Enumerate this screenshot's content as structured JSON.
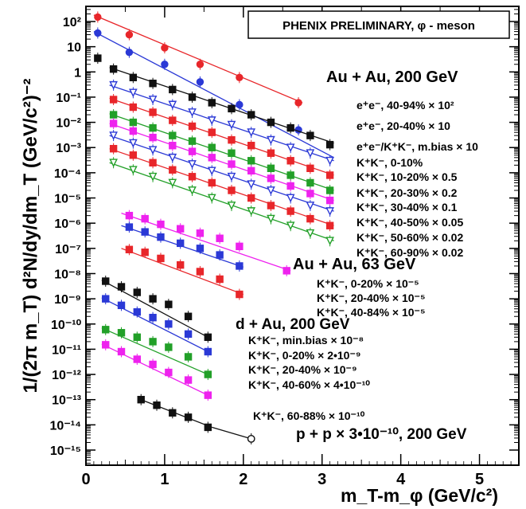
{
  "chart_data": {
    "type": "scatter",
    "title": "PHENIX PRELIMINARY, φ - meson",
    "xlabel": "m_T-m_φ (GeV/c²)",
    "ylabel": "1/(2π m_T) d²N/dy/dm_T (GeV/c²)⁻²",
    "xlim": [
      0,
      5.5
    ],
    "ylim_log10": [
      -15.6,
      2.6
    ],
    "log_y": true,
    "x_ticks": [
      "0",
      "1",
      "2",
      "3",
      "4",
      "5"
    ],
    "y_ticks": [
      "10²",
      "10",
      "1",
      "10⁻¹",
      "10⁻²",
      "10⁻³",
      "10⁻⁴",
      "10⁻⁵",
      "10⁻⁶",
      "10⁻⁷",
      "10⁻⁸",
      "10⁻⁹",
      "10⁻¹⁰",
      "10⁻¹¹",
      "10⁻¹²",
      "10⁻¹³",
      "10⁻¹⁴",
      "10⁻¹⁵"
    ],
    "group_labels": [
      {
        "text": "Au + Au, 200 GeV"
      },
      {
        "text": "Au + Au, 63 GeV"
      },
      {
        "text": "d + Au, 200 GeV"
      },
      {
        "text": "p + p × 3•10⁻¹⁰, 200 GeV"
      }
    ],
    "series": [
      {
        "name": "e⁺e⁻, 40-94% × 10²",
        "color": "#e8262a",
        "marker": "circle",
        "x": [
          0.15,
          0.55,
          1.0,
          1.45,
          1.95,
          2.7
        ],
        "y": [
          150,
          30,
          9,
          2.0,
          0.6,
          0.06
        ],
        "fit": [
          [
            0.1,
            180
          ],
          [
            2.75,
            0.06
          ]
        ]
      },
      {
        "name": "e⁺e⁻, 20-40% × 10",
        "color": "#2b39d6",
        "marker": "circle",
        "x": [
          0.15,
          0.55,
          1.0,
          1.45,
          1.95,
          2.7
        ],
        "y": [
          35,
          6,
          2.0,
          0.4,
          0.05,
          0.005
        ],
        "fit": [
          [
            0.1,
            40
          ],
          [
            3.15,
            0.0004
          ]
        ]
      },
      {
        "name": "e⁺e⁻/K⁺K⁻, m.bias × 10",
        "color": "#111111",
        "marker": "square",
        "x": [
          0.15,
          0.35,
          0.6,
          0.85,
          1.1,
          1.35,
          1.6,
          1.85,
          2.1,
          2.35,
          2.6,
          2.85,
          3.1
        ],
        "y": [
          3.5,
          1.3,
          0.6,
          0.35,
          0.2,
          0.1,
          0.06,
          0.035,
          0.02,
          0.01,
          0.006,
          0.003,
          0.0013
        ],
        "fit": [
          [
            0.3,
            1.5
          ],
          [
            3.15,
            0.0015
          ]
        ]
      },
      {
        "name": "K⁺K⁻, 0-10%",
        "color": "#2b39d6",
        "marker": "triangle",
        "x": [
          0.35,
          0.6,
          0.85,
          1.1,
          1.35,
          1.6,
          1.85,
          2.1,
          2.35,
          2.6,
          2.85,
          3.1
        ],
        "y": [
          0.3,
          0.15,
          0.08,
          0.05,
          0.025,
          0.012,
          0.008,
          0.004,
          0.002,
          0.001,
          0.0006,
          0.0003
        ],
        "fit": [
          [
            0.3,
            0.3
          ],
          [
            3.15,
            0.0003
          ]
        ]
      },
      {
        "name": "K⁺K⁻, 10-20% × 0.5",
        "color": "#e8262a",
        "marker": "square",
        "x": [
          0.35,
          0.6,
          0.85,
          1.1,
          1.35,
          1.6,
          1.85,
          2.1,
          2.35,
          2.6,
          2.85,
          3.1
        ],
        "y": [
          0.08,
          0.04,
          0.025,
          0.012,
          0.007,
          0.004,
          0.002,
          0.0012,
          0.0006,
          0.0003,
          0.00015,
          8e-05
        ],
        "fit": [
          [
            0.3,
            0.09
          ],
          [
            3.15,
            8e-05
          ]
        ]
      },
      {
        "name": "K⁺K⁻, 20-30% × 0.2",
        "color": "#22a028",
        "marker": "square",
        "x": [
          0.35,
          0.6,
          0.85,
          1.1,
          1.35,
          1.6,
          1.85,
          2.1,
          2.35,
          2.6,
          2.85,
          3.1
        ],
        "y": [
          0.02,
          0.01,
          0.006,
          0.003,
          0.0018,
          0.001,
          0.0006,
          0.0003,
          0.00015,
          8e-05,
          4e-05,
          2e-05
        ],
        "fit": [
          [
            0.3,
            0.022
          ],
          [
            3.15,
            2e-05
          ]
        ]
      },
      {
        "name": "K⁺K⁻, 30-40% × 0.1",
        "color": "#ee22ee",
        "marker": "square",
        "x": [
          0.35,
          0.6,
          0.85,
          1.1,
          1.35,
          1.6,
          1.85,
          2.1,
          2.35,
          2.6,
          2.85,
          3.1
        ],
        "y": [
          0.009,
          0.0045,
          0.0025,
          0.0012,
          0.0007,
          0.0004,
          0.00022,
          0.00012,
          6e-05,
          3e-05,
          1.5e-05,
          8e-06
        ],
        "fit": [
          [
            0.3,
            0.009
          ],
          [
            3.15,
            8e-06
          ]
        ]
      },
      {
        "name": "K⁺K⁻, 40-50% × 0.05",
        "color": "#2b39d6",
        "marker": "triangle",
        "x": [
          0.35,
          0.6,
          0.85,
          1.1,
          1.35,
          1.6,
          1.85,
          2.1,
          2.35,
          2.6,
          2.85,
          3.1
        ],
        "y": [
          0.003,
          0.0015,
          0.0008,
          0.0004,
          0.00022,
          0.00012,
          7e-05,
          3.5e-05,
          2e-05,
          1e-05,
          5e-06,
          3e-06
        ],
        "fit": [
          [
            0.3,
            0.003
          ],
          [
            3.15,
            3e-06
          ]
        ]
      },
      {
        "name": "K⁺K⁻, 50-60% × 0.02",
        "color": "#e8262a",
        "marker": "square",
        "x": [
          0.35,
          0.6,
          0.85,
          1.1,
          1.35,
          1.6,
          1.85,
          2.1,
          2.35,
          2.6,
          2.85,
          3.1
        ],
        "y": [
          0.0009,
          0.0005,
          0.00025,
          0.00013,
          7e-05,
          4e-05,
          2e-05,
          1e-05,
          5e-06,
          3e-06,
          1.5e-06,
          8e-07
        ],
        "fit": [
          [
            0.3,
            0.0009
          ],
          [
            3.15,
            8e-07
          ]
        ]
      },
      {
        "name": "K⁺K⁻, 60-90% × 0.02",
        "color": "#22a028",
        "marker": "triangle",
        "x": [
          0.35,
          0.6,
          0.85,
          1.1,
          1.35,
          1.6,
          1.85,
          2.1,
          2.35,
          2.6,
          2.85,
          3.1
        ],
        "y": [
          0.00025,
          0.00013,
          7e-05,
          4e-05,
          2e-05,
          1e-05,
          5e-06,
          3e-06,
          1.5e-06,
          8e-07,
          4e-07,
          2e-07
        ],
        "fit": [
          [
            0.3,
            0.00025
          ],
          [
            3.15,
            2e-07
          ]
        ]
      },
      {
        "name": "K⁺K⁻, 0-20% × 10⁻⁵",
        "color": "#ee22ee",
        "marker": "square",
        "x": [
          0.55,
          0.75,
          0.95,
          1.2,
          1.45,
          1.7,
          1.95,
          2.55
        ],
        "y": [
          2e-06,
          1.5e-06,
          9e-07,
          6e-07,
          4e-07,
          2.5e-07,
          1.2e-07,
          1.3e-08
        ],
        "fit": [
          [
            0.45,
            2.5e-06
          ],
          [
            2.6,
            1.3e-08
          ]
        ]
      },
      {
        "name": "K⁺K⁻, 20-40% × 10⁻⁵",
        "color": "#2b39d6",
        "marker": "square",
        "x": [
          0.55,
          0.75,
          0.95,
          1.2,
          1.45,
          1.7,
          1.95
        ],
        "y": [
          7e-07,
          4.5e-07,
          2.8e-07,
          1.6e-07,
          1e-07,
          5.5e-08,
          2e-08
        ],
        "fit": [
          [
            0.45,
            8e-07
          ],
          [
            2.0,
            1.8e-08
          ]
        ]
      },
      {
        "name": "K⁺K⁻, 40-84% × 10⁻⁵",
        "color": "#e8262a",
        "marker": "square",
        "x": [
          0.55,
          0.75,
          0.95,
          1.2,
          1.45,
          1.7,
          1.95
        ],
        "y": [
          9e-08,
          7e-08,
          4e-08,
          2.2e-08,
          1.2e-08,
          6e-09,
          1.5e-09
        ],
        "fit": [
          [
            0.45,
            1e-07
          ],
          [
            2.0,
            1.5e-09
          ]
        ]
      },
      {
        "name": "K⁺K⁻, min.bias × 10⁻⁸",
        "color": "#111111",
        "marker": "square",
        "x": [
          0.25,
          0.45,
          0.65,
          0.85,
          1.05,
          1.3,
          1.55
        ],
        "y": [
          5e-09,
          3e-09,
          1.8e-09,
          1e-09,
          6e-10,
          2e-10,
          3e-11
        ],
        "fit": [
          [
            0.2,
            5.5e-09
          ],
          [
            1.55,
            3e-11
          ]
        ]
      },
      {
        "name": "K⁺K⁻, 0-20% × 2•10⁻⁹",
        "color": "#2b39d6",
        "marker": "square",
        "x": [
          0.25,
          0.45,
          0.65,
          0.85,
          1.05,
          1.3,
          1.55
        ],
        "y": [
          1e-09,
          5.5e-10,
          3e-10,
          1.8e-10,
          1e-10,
          4e-11,
          8e-12
        ],
        "fit": [
          [
            0.2,
            1.1e-09
          ],
          [
            1.55,
            8e-12
          ]
        ]
      },
      {
        "name": "K⁺K⁻, 20-40% × 10⁻⁹",
        "color": "#22a028",
        "marker": "square",
        "x": [
          0.25,
          0.45,
          0.65,
          0.85,
          1.05,
          1.3,
          1.55
        ],
        "y": [
          6e-11,
          4.5e-11,
          3e-11,
          2e-11,
          1.2e-11,
          5e-12,
          1e-12
        ],
        "fit": [
          [
            0.2,
            7e-11
          ],
          [
            1.55,
            1e-12
          ]
        ]
      },
      {
        "name": "K⁺K⁻, 40-60% × 4•10⁻¹⁰",
        "color": "#ee22ee",
        "marker": "square",
        "x": [
          0.25,
          0.45,
          0.65,
          0.85,
          1.05,
          1.3,
          1.55
        ],
        "y": [
          1.5e-11,
          8e-12,
          4e-12,
          2.5e-12,
          1.2e-12,
          6e-13,
          1.5e-13
        ],
        "fit": [
          [
            0.2,
            1.6e-11
          ],
          [
            1.55,
            1.5e-13
          ]
        ]
      },
      {
        "name": "K⁺K⁻, 60-88% ×   10⁻¹⁰",
        "color": "#111111",
        "marker": "square",
        "x": [
          0.7,
          0.9,
          1.1,
          1.3,
          1.55
        ],
        "y": [
          1e-13,
          6e-14,
          3e-14,
          2e-14,
          8e-15
        ],
        "fit": [
          [
            0.7,
            1e-13
          ],
          [
            1.6,
            8e-15
          ]
        ]
      },
      {
        "name": "p + p × 3•10⁻¹⁰, 200 GeV",
        "color": "#111111",
        "marker": "circle-open",
        "x": [
          2.1
        ],
        "y": [
          2.8e-15
        ],
        "fit": [
          [
            1.6,
            8e-15
          ],
          [
            2.1,
            2.8e-15
          ]
        ]
      }
    ]
  }
}
